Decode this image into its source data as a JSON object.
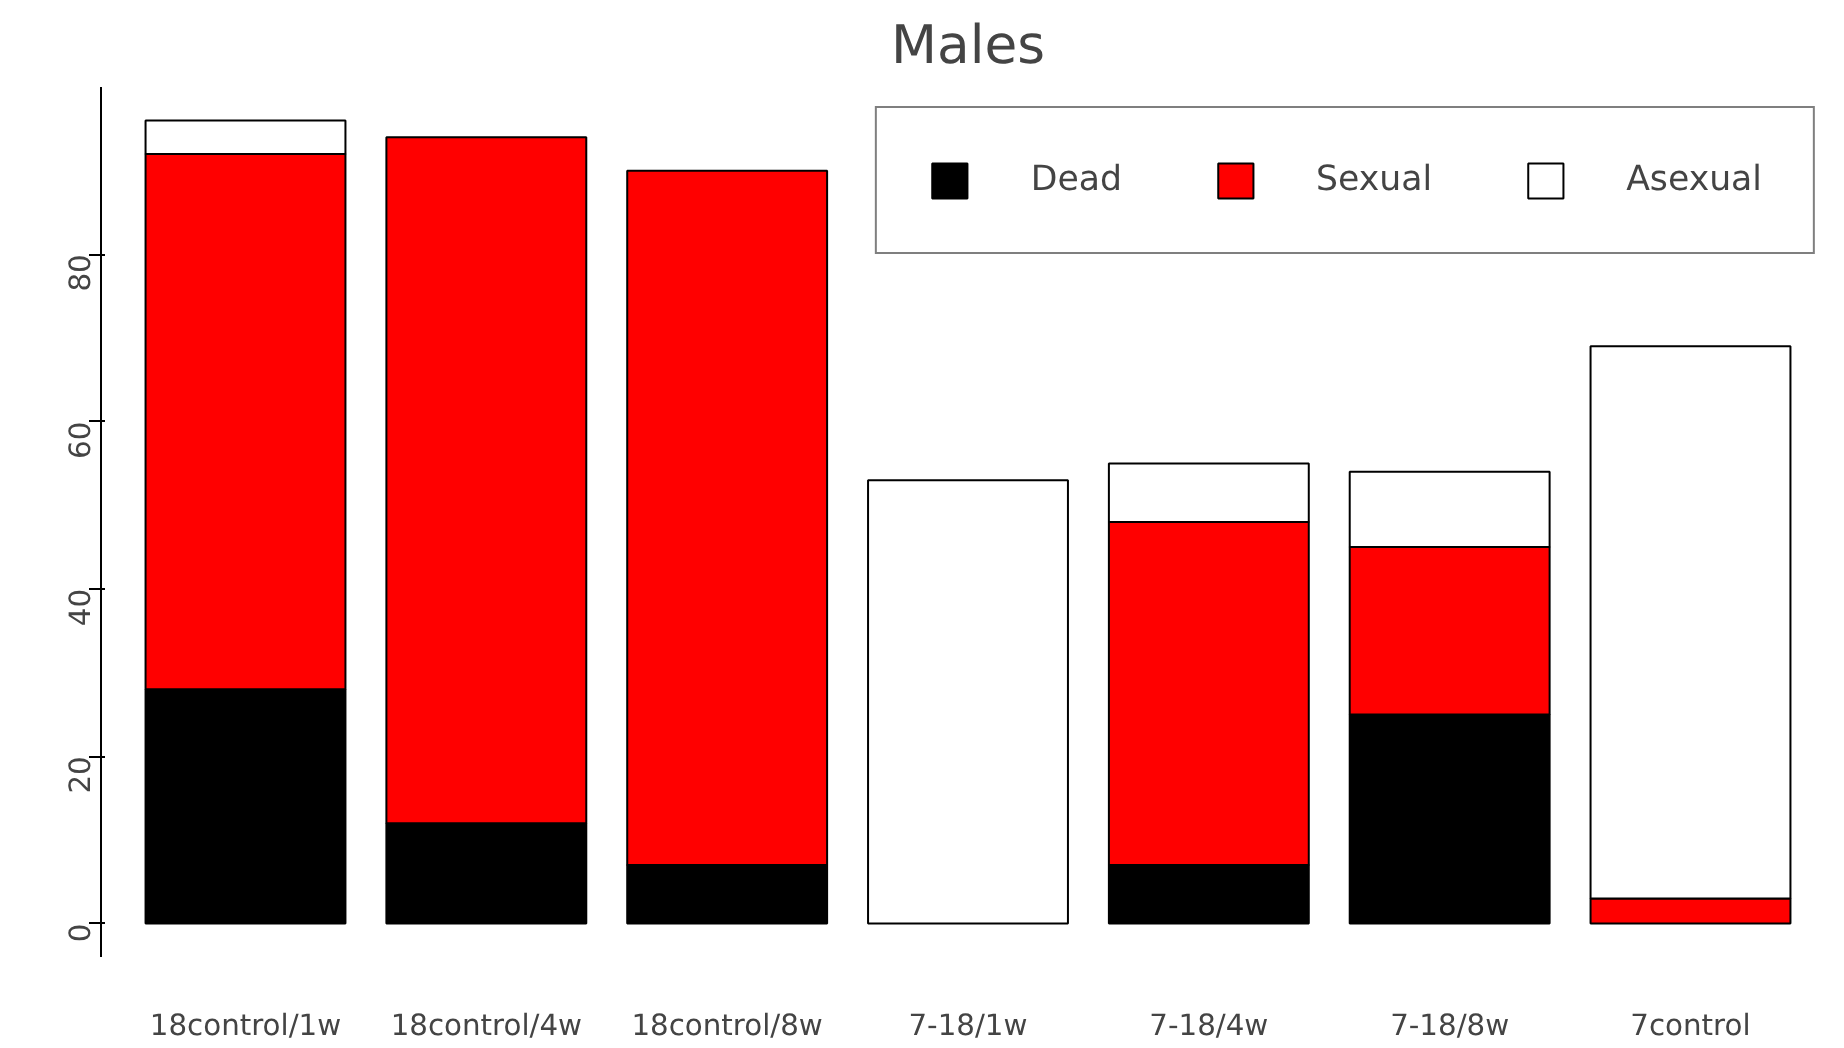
{
  "chart_data": {
    "type": "bar",
    "title": "Males",
    "stacked": true,
    "categories": [
      "18control/1w",
      "18control/4w",
      "18control/8w",
      "7-18/1w",
      "7-18/4w",
      "7-18/8w",
      "7control"
    ],
    "series": [
      {
        "name": "Dead",
        "color": "#000000",
        "values": [
          28,
          12,
          7,
          0,
          7,
          25,
          0
        ]
      },
      {
        "name": "Sexual",
        "color": "#ff0000",
        "values": [
          64,
          82,
          83,
          0,
          41,
          20,
          3
        ]
      },
      {
        "name": "Asexual",
        "color": "#ffffff",
        "values": [
          4,
          0,
          0,
          53,
          7,
          9,
          66
        ]
      }
    ],
    "ylim": [
      -4,
      100
    ],
    "yticks": [
      0,
      20,
      40,
      60,
      80
    ],
    "grid": false,
    "legend": "top right"
  }
}
